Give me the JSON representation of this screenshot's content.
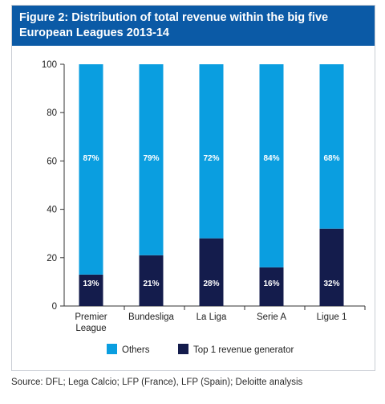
{
  "header": {
    "title_line1": "Figure 2: Distribution of total revenue within the big five",
    "title_line2": "European Leagues 2013-14"
  },
  "source": "Source: DFL; Lega Calcio; LFP (France), LFP (Spain); Deloitte analysis",
  "colors": {
    "others": "#0a9ee0",
    "top1": "#141c4c",
    "header": "#0b5aa6"
  },
  "chart_data": {
    "type": "bar",
    "stacked": true,
    "categories": [
      [
        "Premier",
        "League"
      ],
      [
        "Bundesliga"
      ],
      [
        "La Liga"
      ],
      [
        "Serie A"
      ],
      [
        "Ligue 1"
      ]
    ],
    "series": [
      {
        "name": "Top 1 revenue generator",
        "values": [
          13,
          21,
          28,
          16,
          32
        ],
        "labels": [
          "13%",
          "21%",
          "28%",
          "16%",
          "32%"
        ]
      },
      {
        "name": "Others",
        "values": [
          87,
          79,
          72,
          84,
          68
        ],
        "labels": [
          "87%",
          "79%",
          "72%",
          "84%",
          "68%"
        ]
      }
    ],
    "ylim": [
      0,
      100
    ],
    "yticks": [
      "0",
      "20",
      "40",
      "60",
      "80",
      "100"
    ],
    "legend": {
      "placement": "bottom",
      "entries": [
        "Others",
        "Top 1 revenue generator"
      ]
    },
    "grid": false
  }
}
